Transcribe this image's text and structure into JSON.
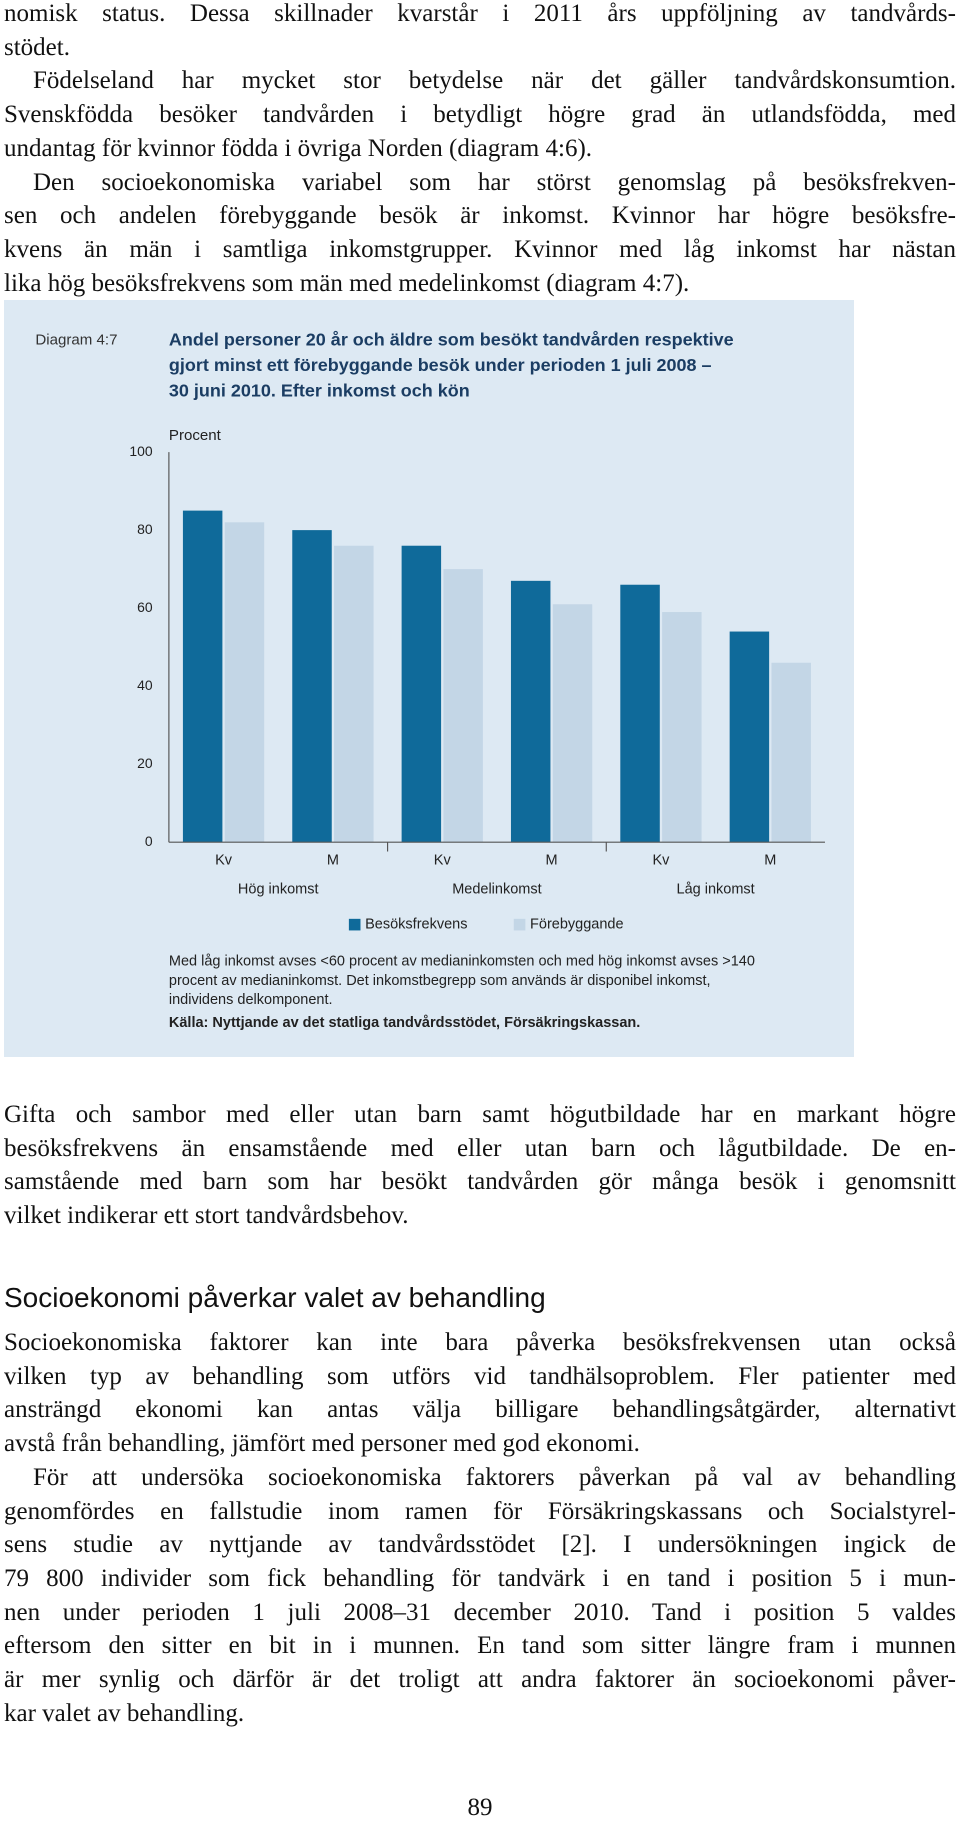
{
  "top": {
    "paragraphs": [
      [
        "nomisk status. Dessa skillnader kvarstår i 2011 års uppföljning av tandvårds-",
        "stödet."
      ],
      [
        "Födelseland har mycket stor betydelse när det gäller tandvårdskonsumtion.",
        "Svenskfödda besöker tandvården i betydligt högre grad än utlandsfödda, med",
        "undantag för kvinnor födda i övriga Norden (diagram 4:6)."
      ],
      [
        "Den socioekonomiska variabel som har störst genomslag på besöksfrekven-",
        "sen och andelen förebyggande besök är inkomst. Kvinnor har högre besöksfre-",
        "kvens än män i samtliga inkomstgrupper. Kvinnor med låg inkomst har nästan",
        "lika hög besöksfrekvens som män med medelinkomst (diagram 4:7)."
      ]
    ]
  },
  "chart_data": {
    "type": "bar",
    "diagram_label": "Diagram 4:7",
    "title": [
      "Andel personer 20 år och äldre som besökt tandvården respektive",
      "gjort minst ett förebyggande besök under perioden 1 juli 2008 –",
      "30 juni 2010. Efter inkomst och kön"
    ],
    "y_label": "Procent",
    "categories": [
      "Kv",
      "M",
      "Kv",
      "M",
      "Kv",
      "M"
    ],
    "groups": [
      "Hög inkomst",
      "Medelinkomst",
      "Låg inkomst"
    ],
    "series": [
      {
        "name": "Besöksfrekvens",
        "color": "#0f6a9a",
        "values": [
          85,
          80,
          76,
          67,
          66,
          54
        ]
      },
      {
        "name": "Förebyggande",
        "color": "#c3d6e6",
        "values": [
          82,
          76,
          70,
          61,
          59,
          46
        ]
      }
    ],
    "ylim": [
      0,
      100
    ],
    "yticks": [
      0,
      20,
      40,
      60,
      80,
      100
    ],
    "note": [
      "Med låg inkomst avses <60 procent av medianinkomsten och med hög inkomst avses >140",
      "procent av medianinkomst. Det inkomstbegrepp som används är disponibel inkomst,",
      "individens delkomponent."
    ],
    "source": "Källa: Nyttjande av det statliga tandvårdsstödet, Försäkringskassan."
  },
  "bottom": {
    "paragraphs": [
      [
        "Gifta och sambor med eller utan barn samt högutbildade har en markant högre",
        "besöksfrekvens än ensamstående med eller utan barn och lågutbildade. De en-",
        "samstående med barn som har besökt tandvården gör många besök i genomsnitt",
        "vilket indikerar ett stort tandvårdsbehov."
      ]
    ]
  },
  "section": {
    "heading": "Socioekonomi påverkar valet av behandling",
    "paragraphs": [
      [
        "Socioekonomiska faktorer kan inte bara påverka besöksfrekvensen utan också",
        "vilken typ av behandling som utförs vid tandhälsoproblem. Fler patienter med",
        "ansträngd ekonomi kan antas välja billigare behandlingsåtgärder, alternativt",
        "avstå från behandling, jämfört med personer med god ekonomi."
      ],
      [
        "För att undersöka socioekonomiska faktorers påverkan på val av behandling",
        "genomfördes en fallstudie inom ramen för Försäkringskassans och Socialstyrel-",
        "sens studie av nyttjande av tandvårdsstödet [2]. I undersökningen ingick de",
        "79 800 individer som fick behandling för tandvärk i en tand i position 5 i mun-",
        "nen under perioden 1 juli 2008–31 december 2010. Tand i position 5 valdes",
        "eftersom den sitter en bit in i munnen. En tand som sitter längre fram i munnen",
        "är mer synlig och därför är det troligt att andra faktorer än socioekonomi påver-",
        "kar valet av behandling."
      ]
    ]
  },
  "page_number": "89"
}
